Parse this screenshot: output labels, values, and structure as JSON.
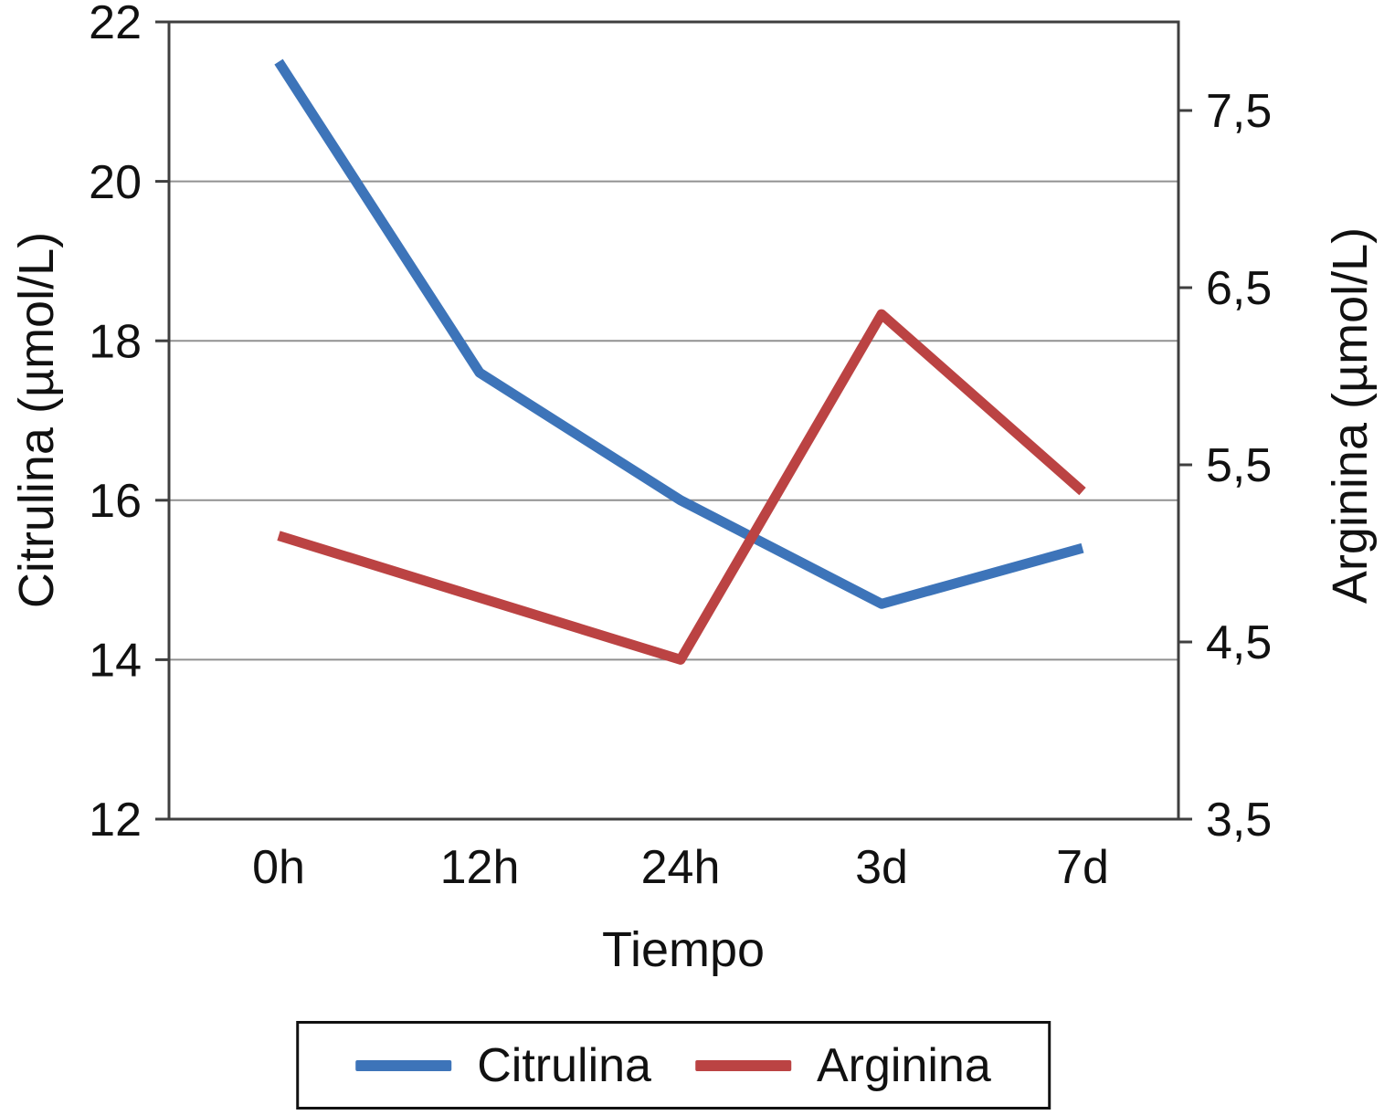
{
  "figure": {
    "background": "#ffffff",
    "frame_color": "#3f3f3f",
    "grid_color": "#919191"
  },
  "chart_data": {
    "type": "line",
    "title": "",
    "xlabel": "Tiempo",
    "ylabel_left": "Citrulina (µmol/L)",
    "ylabel_right": "Arginina (µmol/L)",
    "categories": [
      "0h",
      "12h",
      "24h",
      "3d",
      "7d"
    ],
    "series": [
      {
        "name": "Citrulina",
        "axis": "left",
        "color": "#3D74B9",
        "values": [
          21.5,
          17.6,
          16.0,
          14.7,
          15.4
        ]
      },
      {
        "name": "Arginina",
        "axis": "right",
        "color": "#BB4343",
        "values": [
          5.1,
          4.75,
          4.4,
          6.35,
          5.35
        ]
      }
    ],
    "left_axis": {
      "min": 12,
      "max": 22,
      "ticks": [
        22,
        20,
        18,
        16,
        14,
        12
      ],
      "tick_labels": [
        "22",
        "20",
        "18",
        "16",
        "14",
        "12"
      ]
    },
    "right_axis": {
      "min": 3.5,
      "max": 8.0,
      "ticks": [
        7.5,
        6.5,
        5.5,
        4.5,
        3.5
      ],
      "tick_labels": [
        "7,5",
        "6,5",
        "5,5",
        "4,5",
        "3,5"
      ]
    },
    "gridlines": [
      20,
      18,
      16,
      14
    ],
    "grid": "horizontal",
    "legend_position": "bottom"
  },
  "legend": {
    "items": [
      {
        "label": "Citrulina",
        "color": "#3D74B9"
      },
      {
        "label": "Arginina",
        "color": "#BB4343"
      }
    ]
  }
}
